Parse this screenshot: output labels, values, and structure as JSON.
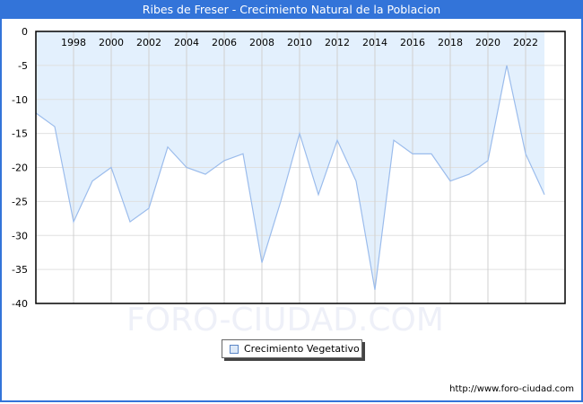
{
  "header": {
    "title": "Ribes de Freser - Crecimiento Natural de la Poblacion"
  },
  "watermark": "FORO-CIUDAD.COM",
  "legend": {
    "label": "Crecimiento Vegetativo",
    "swatch_color": "#dde9f8"
  },
  "footer": {
    "url": "http://www.foro-ciudad.com"
  },
  "colors": {
    "title_bar": "#3374d9",
    "fill": "#e3f0fd",
    "line": "#9bbcec",
    "grid": "#d0d0d0"
  },
  "chart_data": {
    "type": "area",
    "title": "Ribes de Freser - Crecimiento Natural de la Poblacion",
    "xlabel": "",
    "ylabel": "",
    "x": [
      1996,
      1997,
      1998,
      1999,
      2000,
      2001,
      2002,
      2003,
      2004,
      2005,
      2006,
      2007,
      2008,
      2009,
      2010,
      2011,
      2012,
      2013,
      2014,
      2015,
      2016,
      2017,
      2018,
      2019,
      2020,
      2021,
      2022,
      2023
    ],
    "series": [
      {
        "name": "Crecimiento Vegetativo",
        "values": [
          -12,
          -14,
          -28,
          -22,
          -20,
          -28,
          -26,
          -17,
          -20,
          -21,
          -19,
          -18,
          -34,
          -25,
          -15,
          -24,
          -16,
          -22,
          -38,
          -16,
          -18,
          -18,
          -22,
          -21,
          -19,
          -5,
          -18,
          -24
        ]
      }
    ],
    "x_tick_labels": [
      "1998",
      "2000",
      "2002",
      "2004",
      "2006",
      "2008",
      "2010",
      "2012",
      "2014",
      "2016",
      "2018",
      "2020",
      "2022"
    ],
    "y_tick_labels": [
      "0",
      "-5",
      "-10",
      "-15",
      "-20",
      "-25",
      "-30",
      "-35",
      "-40"
    ],
    "ylim": [
      -40,
      0
    ],
    "grid": true,
    "legend_position": "bottom"
  }
}
